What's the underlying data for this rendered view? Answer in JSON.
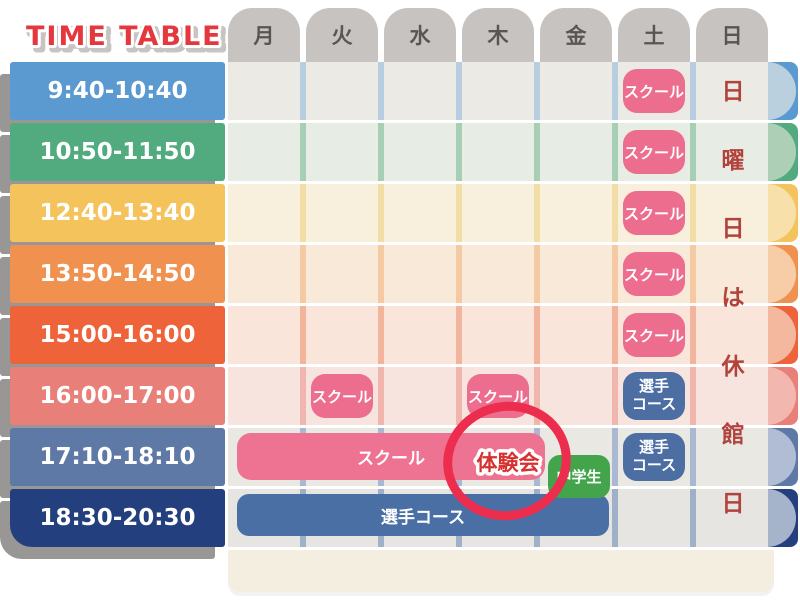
{
  "title": {
    "text": "TIME TABLE",
    "color": "#e4383e",
    "shadow": "#c7c4c1"
  },
  "header": {
    "days": [
      "月",
      "火",
      "水",
      "木",
      "金",
      "土",
      "日"
    ],
    "day_keys": [
      "mon",
      "tue",
      "wed",
      "thu",
      "fri",
      "sat",
      "sun"
    ],
    "bg": "#c6c3c0",
    "text_color": "#585654"
  },
  "sunday_notice": {
    "text": "日曜日は休館日",
    "chars": [
      "日",
      "曜",
      "日",
      "は",
      "休",
      "館",
      "日"
    ],
    "color": "#b2423c"
  },
  "legend": {
    "school": "スクール",
    "athlete": "選手コース",
    "athlete_lines": [
      "選手",
      "コース"
    ],
    "trial": "体験会",
    "junior_high": "中学生"
  },
  "rows": [
    {
      "time": "9:40-10:40",
      "color": "#5b9ad0",
      "cell": "#ebeae5",
      "sep": "#b6cee0",
      "tail": "#bad0de",
      "events": [
        {
          "day": "土",
          "badge": "school"
        }
      ]
    },
    {
      "time": "10:50-11:50",
      "color": "#51ab7f",
      "cell": "#e7ece4",
      "sep": "#a6cfb6",
      "tail": "#accfb5",
      "events": [
        {
          "day": "土",
          "badge": "school"
        }
      ]
    },
    {
      "time": "12:40-13:40",
      "color": "#f5c35c",
      "cell": "#f8efdc",
      "sep": "#f3dda6",
      "tail": "#f7e0aa",
      "events": [
        {
          "day": "土",
          "badge": "school"
        }
      ]
    },
    {
      "time": "13:50-14:50",
      "color": "#f19150",
      "cell": "#f9e9d8",
      "sep": "#f4c9a3",
      "tail": "#f6cda6",
      "events": [
        {
          "day": "土",
          "badge": "school"
        }
      ]
    },
    {
      "time": "15:00-16:00",
      "color": "#ee6339",
      "cell": "#f9e5da",
      "sep": "#f2b59c",
      "tail": "#f4b89e",
      "events": [
        {
          "day": "土",
          "badge": "school"
        }
      ]
    },
    {
      "time": "16:00-17:00",
      "color": "#e87f78",
      "cell": "#f8e4de",
      "sep": "#f0b5ac",
      "tail": "#f2b7ae",
      "events": [
        {
          "day": "火",
          "badge": "school"
        },
        {
          "day": "木",
          "badge": "school"
        },
        {
          "day": "土",
          "badge": "athlete"
        }
      ]
    },
    {
      "time": "17:10-18:10",
      "color": "#5e79a5",
      "cell": "#e9e8e3",
      "sep": "#abb8d1",
      "tail": "#b1bdd4",
      "events": [
        {
          "day": "土",
          "badge": "athlete"
        }
      ]
    },
    {
      "time": "18:30-20:30",
      "color": "#233f7d",
      "cell": "#e6e5e1",
      "sep": "#9fb0c9",
      "tail": "#a6b4cb",
      "events": []
    }
  ],
  "overlays": {
    "school_bar": {
      "label": "スクール"
    },
    "athlete_bar": {
      "label": "選手コース"
    },
    "trial_badge": {
      "label": "体験会",
      "text_color": "#d6312f",
      "ring_color": "#ec2d4e"
    },
    "junior_badge": {
      "label": "中学生",
      "bg": "#43a44b"
    }
  },
  "badge_colors": {
    "pink": "#ec6d8e",
    "blue": "#4c6ea3"
  }
}
